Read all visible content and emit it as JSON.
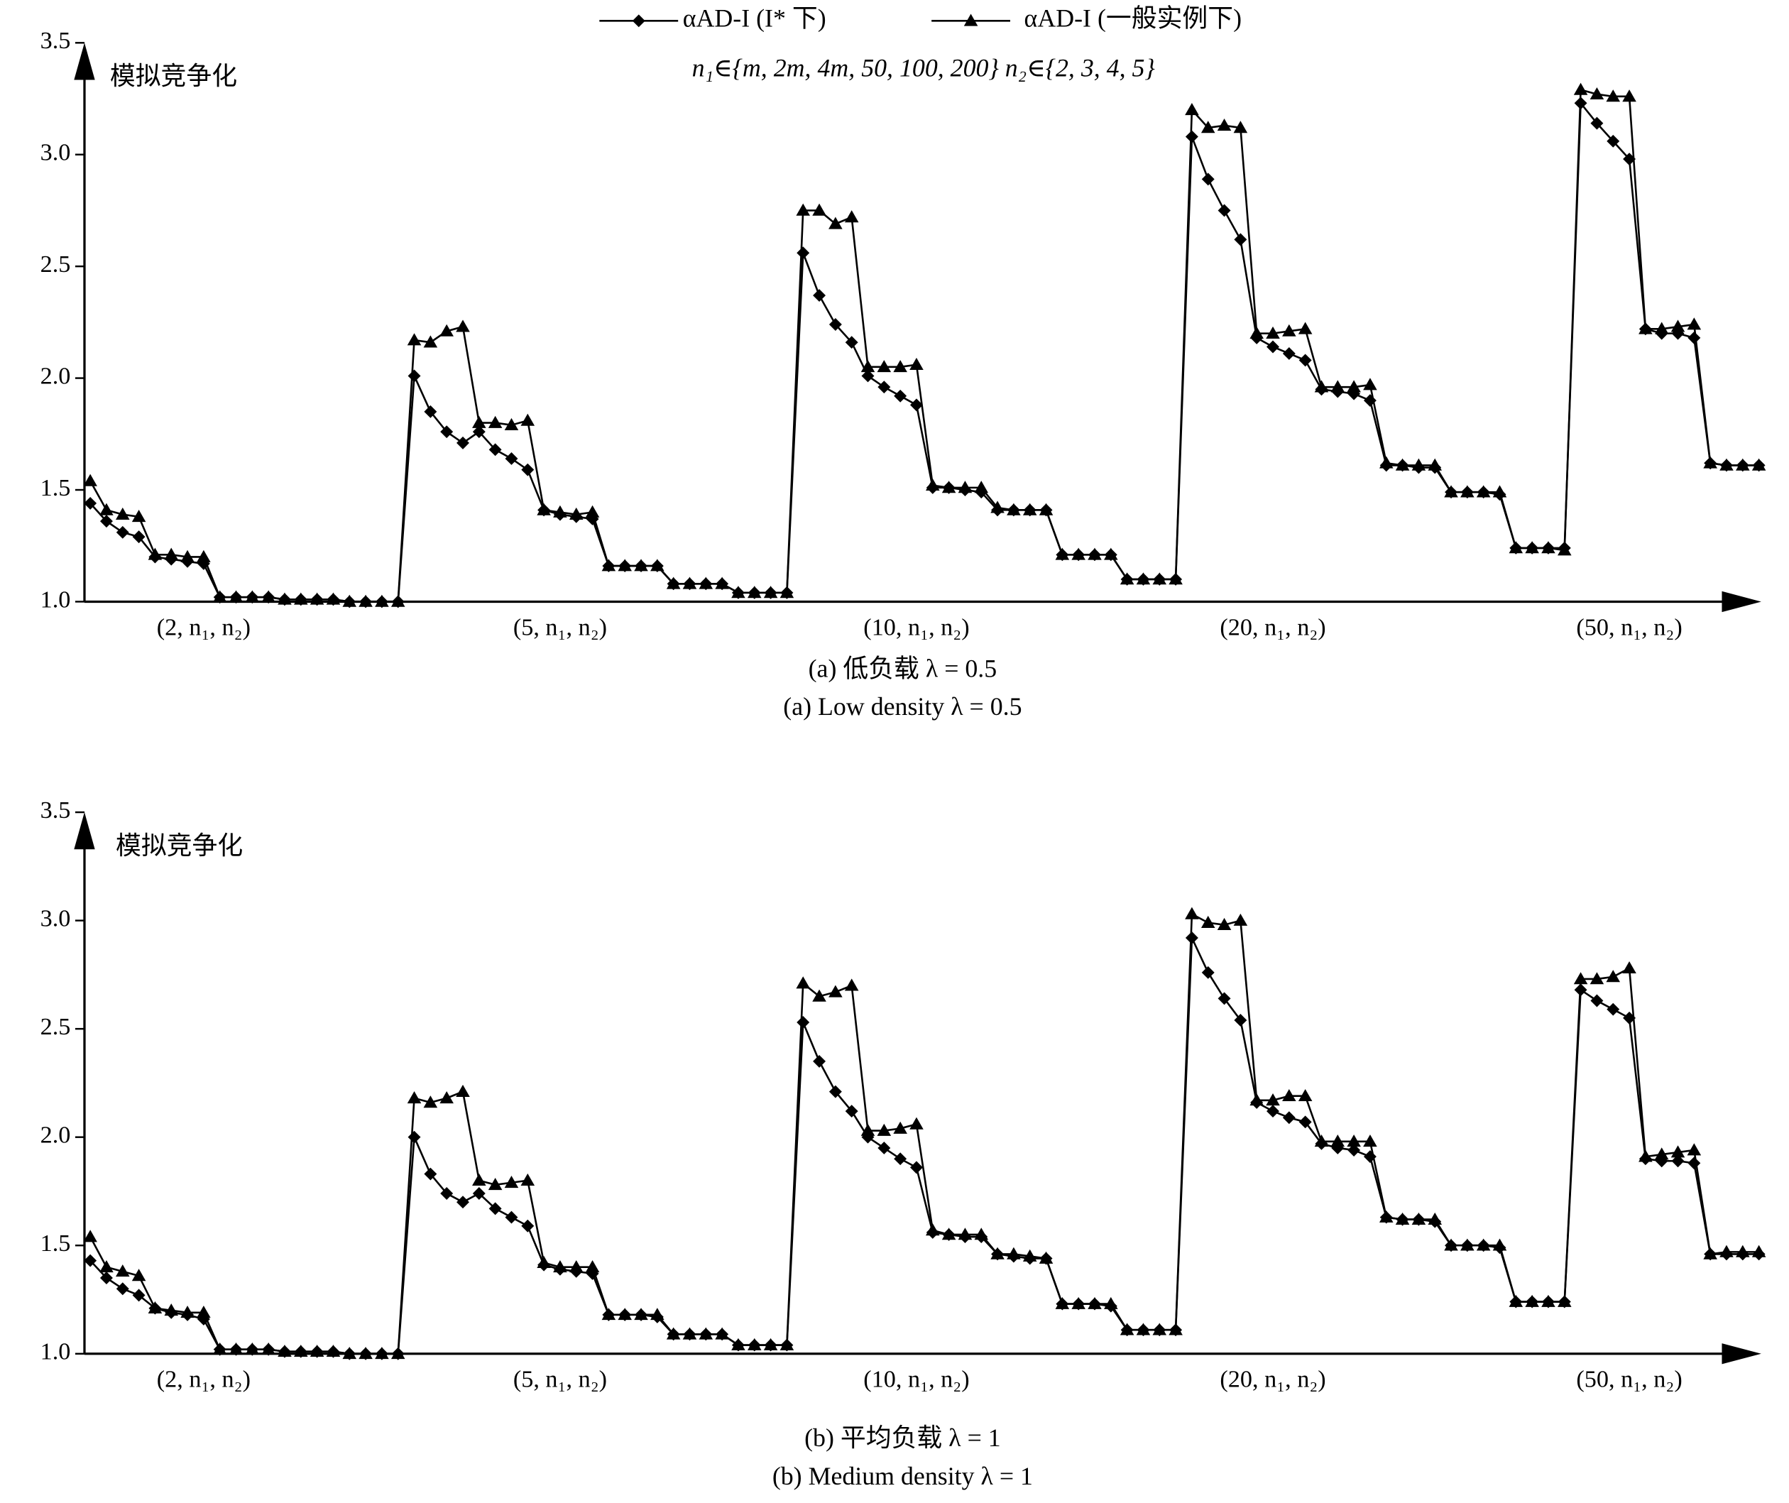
{
  "chart_data": [
    {
      "type": "line",
      "annotation": "n₁∈{m, 2m, 4m, 50, 100, 200}  n₂∈{2, 3, 4, 5}",
      "ylabel": "模拟竞争化",
      "caption": "(a) 低负载 λ = 0.5",
      "caption_en": "(a) Low density λ = 0.5",
      "ylim": [
        1,
        3.5
      ],
      "yticks": [
        {
          "value": 1,
          "label": "1.0"
        },
        1.5,
        {
          "value": 2,
          "label": "2.0"
        },
        2.5,
        {
          "value": 3,
          "label": "3.0"
        },
        3.5
      ],
      "categories": [
        null,
        null,
        null,
        null,
        null,
        null,
        null,
        "(2, n₁, n₂)",
        null,
        null,
        null,
        null,
        null,
        null,
        null,
        null,
        null,
        null,
        null,
        null,
        null,
        null,
        null,
        null,
        null,
        null,
        null,
        null,
        null,
        "(5, n₁, n₂)",
        null,
        null,
        null,
        null,
        null,
        null,
        null,
        null,
        null,
        null,
        null,
        null,
        null,
        null,
        null,
        null,
        null,
        null,
        null,
        null,
        null,
        "(10, n₁, n₂)",
        null,
        null,
        null,
        null,
        null,
        null,
        null,
        null,
        null,
        null,
        null,
        null,
        null,
        null,
        null,
        null,
        null,
        null,
        null,
        null,
        null,
        "(20, n₁, n₂)",
        null,
        null,
        null,
        null,
        null,
        null,
        null,
        null,
        null,
        null,
        null,
        null,
        null,
        null,
        null,
        null,
        null,
        null,
        null,
        null,
        null,
        "(50, n₁, n₂)",
        null,
        null,
        null,
        null,
        null,
        null,
        null,
        null
      ],
      "series": [
        {
          "name": "αAD-I (I* 下)",
          "color": "#000000",
          "marker": "diamond",
          "values": [
            1.44,
            1.36,
            1.31,
            1.29,
            1.2,
            1.19,
            1.18,
            1.17,
            1.02,
            1.02,
            1.02,
            1.02,
            1.01,
            1.01,
            1.01,
            1.01,
            1.0,
            1.0,
            1.0,
            1.0,
            2.01,
            1.85,
            1.76,
            1.71,
            1.76,
            1.68,
            1.64,
            1.59,
            1.41,
            1.39,
            1.38,
            1.37,
            1.16,
            1.16,
            1.16,
            1.16,
            1.08,
            1.08,
            1.08,
            1.08,
            1.04,
            1.04,
            1.04,
            1.04,
            2.56,
            2.37,
            2.24,
            2.16,
            2.01,
            1.96,
            1.92,
            1.88,
            1.51,
            1.51,
            1.5,
            1.49,
            1.41,
            1.41,
            1.41,
            1.41,
            1.21,
            1.21,
            1.21,
            1.21,
            1.1,
            1.1,
            1.1,
            1.1,
            3.08,
            2.89,
            2.75,
            2.62,
            2.18,
            2.14,
            2.11,
            2.08,
            1.95,
            1.94,
            1.93,
            1.9,
            1.61,
            1.61,
            1.6,
            1.6,
            1.49,
            1.49,
            1.49,
            1.48,
            1.24,
            1.24,
            1.24,
            1.24,
            3.23,
            3.14,
            3.06,
            2.98,
            2.22,
            2.2,
            2.2,
            2.18,
            1.62,
            1.61,
            1.61,
            1.61
          ]
        },
        {
          "name": "αAD-I (一般实例下)",
          "color": "#000000",
          "marker": "triangle",
          "values": [
            1.54,
            1.41,
            1.39,
            1.38,
            1.21,
            1.21,
            1.2,
            1.2,
            1.02,
            1.02,
            1.02,
            1.02,
            1.01,
            1.01,
            1.01,
            1.01,
            1.0,
            1.0,
            1.0,
            1.0,
            2.17,
            2.16,
            2.21,
            2.23,
            1.8,
            1.8,
            1.79,
            1.81,
            1.41,
            1.4,
            1.39,
            1.4,
            1.16,
            1.16,
            1.16,
            1.16,
            1.08,
            1.08,
            1.08,
            1.08,
            1.04,
            1.04,
            1.04,
            1.04,
            2.75,
            2.75,
            2.69,
            2.72,
            2.05,
            2.05,
            2.05,
            2.06,
            1.52,
            1.51,
            1.51,
            1.51,
            1.42,
            1.41,
            1.41,
            1.41,
            1.21,
            1.21,
            1.21,
            1.21,
            1.1,
            1.1,
            1.1,
            1.1,
            3.2,
            3.12,
            3.13,
            3.12,
            2.2,
            2.2,
            2.21,
            2.22,
            1.96,
            1.96,
            1.96,
            1.97,
            1.62,
            1.61,
            1.61,
            1.61,
            1.49,
            1.49,
            1.49,
            1.49,
            1.24,
            1.24,
            1.24,
            1.23,
            3.29,
            3.27,
            3.26,
            3.26,
            2.22,
            2.22,
            2.23,
            2.24,
            1.62,
            1.61,
            1.61,
            1.61
          ]
        }
      ]
    },
    {
      "type": "line",
      "ylabel": "模拟竞争化",
      "caption": "(b) 平均负载 λ = 1",
      "caption_en": "(b) Medium density λ = 1",
      "ylim": [
        1,
        3.5
      ],
      "yticks": [
        {
          "value": 1,
          "label": "1.0"
        },
        1.5,
        {
          "value": 2,
          "label": "2.0"
        },
        2.5,
        {
          "value": 3,
          "label": "3.0"
        },
        3.5
      ],
      "categories": [
        null,
        null,
        null,
        null,
        null,
        null,
        null,
        "(2, n₁, n₂)",
        null,
        null,
        null,
        null,
        null,
        null,
        null,
        null,
        null,
        null,
        null,
        null,
        null,
        null,
        null,
        null,
        null,
        null,
        null,
        null,
        null,
        "(5, n₁, n₂)",
        null,
        null,
        null,
        null,
        null,
        null,
        null,
        null,
        null,
        null,
        null,
        null,
        null,
        null,
        null,
        null,
        null,
        null,
        null,
        null,
        null,
        "(10, n₁, n₂)",
        null,
        null,
        null,
        null,
        null,
        null,
        null,
        null,
        null,
        null,
        null,
        null,
        null,
        null,
        null,
        null,
        null,
        null,
        null,
        null,
        null,
        "(20, n₁, n₂)",
        null,
        null,
        null,
        null,
        null,
        null,
        null,
        null,
        null,
        null,
        null,
        null,
        null,
        null,
        null,
        null,
        null,
        null,
        null,
        null,
        null,
        "(50, n₁, n₂)",
        null,
        null,
        null,
        null,
        null,
        null,
        null,
        null
      ],
      "series": [
        {
          "color": "#000000",
          "marker": "diamond",
          "values": [
            1.43,
            1.35,
            1.3,
            1.27,
            1.21,
            1.19,
            1.18,
            1.16,
            1.02,
            1.02,
            1.02,
            1.02,
            1.01,
            1.01,
            1.01,
            1.01,
            1.0,
            1.0,
            1.0,
            1.0,
            2.0,
            1.83,
            1.74,
            1.7,
            1.74,
            1.67,
            1.63,
            1.59,
            1.41,
            1.39,
            1.38,
            1.37,
            1.18,
            1.18,
            1.18,
            1.17,
            1.09,
            1.09,
            1.09,
            1.09,
            1.04,
            1.04,
            1.04,
            1.04,
            2.53,
            2.35,
            2.21,
            2.12,
            2.0,
            1.95,
            1.9,
            1.86,
            1.56,
            1.55,
            1.54,
            1.54,
            1.46,
            1.45,
            1.44,
            1.44,
            1.23,
            1.23,
            1.23,
            1.22,
            1.11,
            1.11,
            1.11,
            1.11,
            2.92,
            2.76,
            2.64,
            2.54,
            2.16,
            2.12,
            2.09,
            2.07,
            1.97,
            1.95,
            1.94,
            1.91,
            1.63,
            1.62,
            1.62,
            1.61,
            1.5,
            1.5,
            1.5,
            1.49,
            1.24,
            1.24,
            1.24,
            1.24,
            2.68,
            2.63,
            2.59,
            2.55,
            1.9,
            1.89,
            1.89,
            1.88,
            1.46,
            1.46,
            1.46,
            1.46
          ]
        },
        {
          "color": "#000000",
          "marker": "triangle",
          "values": [
            1.54,
            1.4,
            1.38,
            1.36,
            1.21,
            1.2,
            1.19,
            1.19,
            1.02,
            1.02,
            1.02,
            1.02,
            1.01,
            1.01,
            1.01,
            1.01,
            1.0,
            1.0,
            1.0,
            1.0,
            2.18,
            2.16,
            2.18,
            2.21,
            1.8,
            1.78,
            1.79,
            1.8,
            1.42,
            1.4,
            1.4,
            1.4,
            1.18,
            1.18,
            1.18,
            1.18,
            1.09,
            1.09,
            1.09,
            1.09,
            1.04,
            1.04,
            1.04,
            1.04,
            2.71,
            2.65,
            2.67,
            2.7,
            2.03,
            2.03,
            2.04,
            2.06,
            1.57,
            1.55,
            1.55,
            1.55,
            1.46,
            1.46,
            1.45,
            1.44,
            1.23,
            1.23,
            1.23,
            1.23,
            1.11,
            1.11,
            1.11,
            1.11,
            3.03,
            2.99,
            2.98,
            3.0,
            2.17,
            2.17,
            2.19,
            2.19,
            1.98,
            1.98,
            1.98,
            1.98,
            1.63,
            1.62,
            1.62,
            1.62,
            1.5,
            1.5,
            1.5,
            1.5,
            1.24,
            1.24,
            1.24,
            1.24,
            2.73,
            2.73,
            2.74,
            2.78,
            1.91,
            1.92,
            1.93,
            1.94,
            1.46,
            1.47,
            1.47,
            1.47
          ]
        }
      ]
    }
  ]
}
